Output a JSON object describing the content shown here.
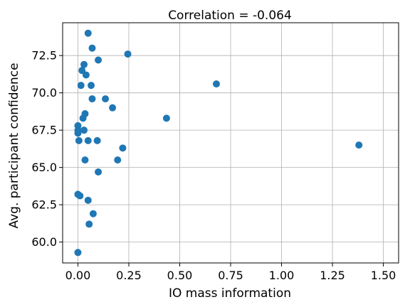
{
  "chart_data": {
    "type": "scatter",
    "title": "Correlation = -0.064",
    "xlabel": "IO mass information",
    "ylabel": "Avg. participant confidence",
    "xlim": [
      -0.075,
      1.575
    ],
    "ylim": [
      58.6,
      74.7
    ],
    "xticks": [
      "0.00",
      "0.25",
      "0.50",
      "0.75",
      "1.00",
      "1.25",
      "1.50"
    ],
    "yticks": [
      "60.0",
      "62.5",
      "65.0",
      "67.5",
      "70.0",
      "72.5"
    ],
    "grid": true,
    "marker_color": "#1f77b4",
    "points": [
      {
        "x": 0.05,
        "y": 74.0
      },
      {
        "x": 0.07,
        "y": 73.0
      },
      {
        "x": 0.245,
        "y": 72.6
      },
      {
        "x": 0.1,
        "y": 72.2
      },
      {
        "x": 0.03,
        "y": 71.9
      },
      {
        "x": 0.02,
        "y": 71.5
      },
      {
        "x": 0.04,
        "y": 71.2
      },
      {
        "x": 0.015,
        "y": 70.5
      },
      {
        "x": 0.065,
        "y": 70.5
      },
      {
        "x": 0.68,
        "y": 70.6
      },
      {
        "x": 0.135,
        "y": 69.6
      },
      {
        "x": 0.07,
        "y": 69.6
      },
      {
        "x": 0.17,
        "y": 69.0
      },
      {
        "x": 0.035,
        "y": 68.6
      },
      {
        "x": 0.025,
        "y": 68.3
      },
      {
        "x": 0.435,
        "y": 68.3
      },
      {
        "x": 0.0,
        "y": 67.8
      },
      {
        "x": 0.0,
        "y": 67.5
      },
      {
        "x": 0.0,
        "y": 67.3
      },
      {
        "x": 0.03,
        "y": 67.5
      },
      {
        "x": 0.005,
        "y": 66.8
      },
      {
        "x": 0.05,
        "y": 66.8
      },
      {
        "x": 0.095,
        "y": 66.8
      },
      {
        "x": 1.38,
        "y": 66.5
      },
      {
        "x": 0.22,
        "y": 66.3
      },
      {
        "x": 0.035,
        "y": 65.5
      },
      {
        "x": 0.195,
        "y": 65.5
      },
      {
        "x": 0.1,
        "y": 64.7
      },
      {
        "x": 0.0,
        "y": 63.2
      },
      {
        "x": 0.01,
        "y": 63.1
      },
      {
        "x": 0.05,
        "y": 62.8
      },
      {
        "x": 0.075,
        "y": 61.9
      },
      {
        "x": 0.055,
        "y": 61.2
      },
      {
        "x": 0.0,
        "y": 59.3
      }
    ]
  }
}
